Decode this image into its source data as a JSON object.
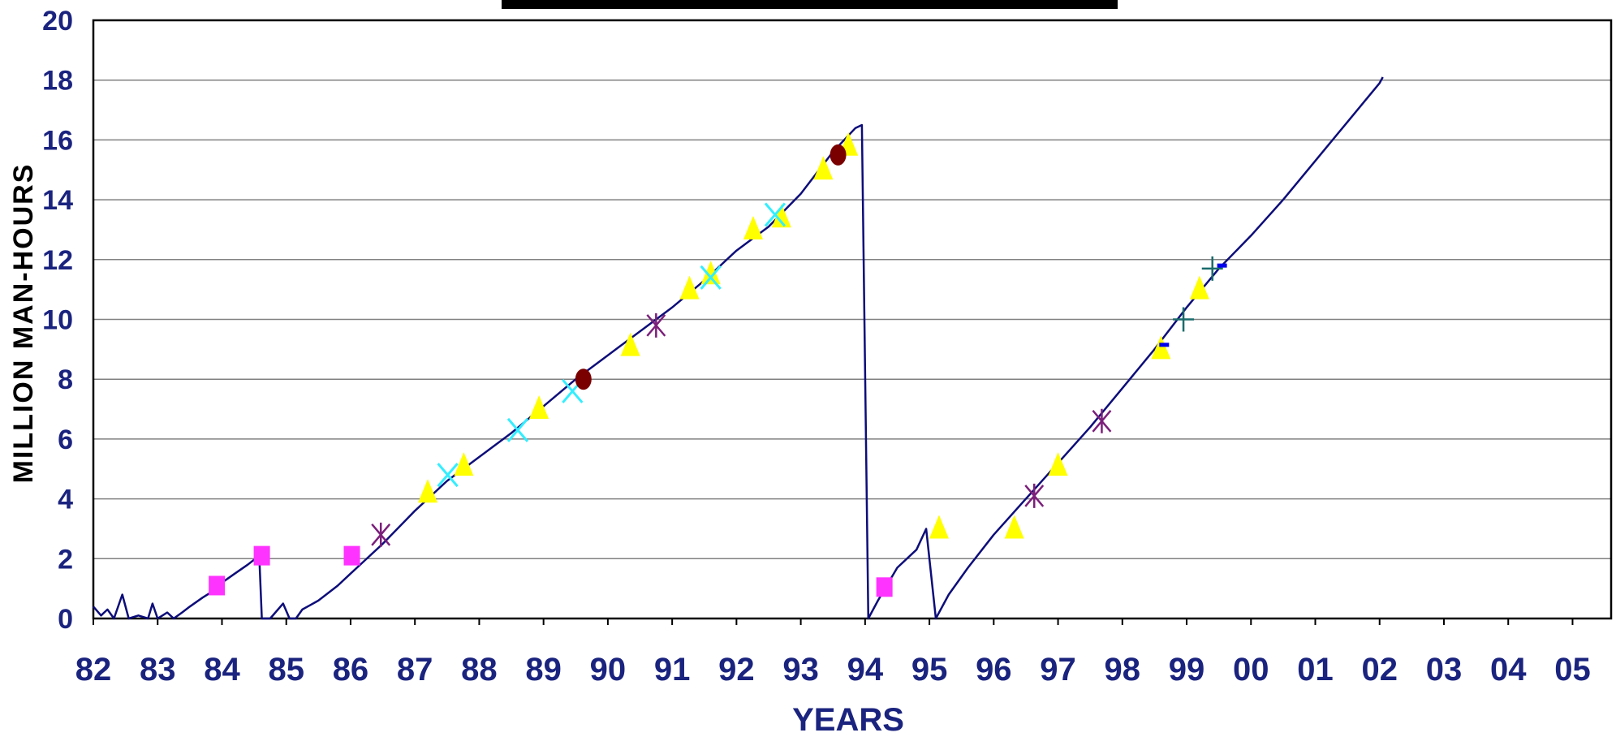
{
  "colors": {
    "line": "#0d0d7a",
    "axis": "#000000",
    "grid": "#808080",
    "tick_text": "#1a237e",
    "square": "#ff33ff",
    "triangle": "#ffff00",
    "x_marker": "#33eeff",
    "asterisk": "#7b1f7b",
    "circle": "#7a0000",
    "plus": "#1a6b6b",
    "dash": "#0000ee",
    "title_bar": "#000000"
  },
  "chart_data": {
    "type": "line",
    "title": "",
    "xlabel": "YEARS",
    "ylabel": "MILLION MAN-HOURS",
    "ylim": [
      0,
      20
    ],
    "xlim": [
      1982,
      2005.6
    ],
    "grid": true,
    "x_ticks": [
      {
        "x": 1982,
        "label": "82"
      },
      {
        "x": 1983,
        "label": "83"
      },
      {
        "x": 1984,
        "label": "84"
      },
      {
        "x": 1985,
        "label": "85"
      },
      {
        "x": 1986,
        "label": "86"
      },
      {
        "x": 1987,
        "label": "87"
      },
      {
        "x": 1988,
        "label": "88"
      },
      {
        "x": 1989,
        "label": "89"
      },
      {
        "x": 1990,
        "label": "90"
      },
      {
        "x": 1991,
        "label": "91"
      },
      {
        "x": 1992,
        "label": "92"
      },
      {
        "x": 1993,
        "label": "93"
      },
      {
        "x": 1994,
        "label": "94"
      },
      {
        "x": 1995,
        "label": "95"
      },
      {
        "x": 1996,
        "label": "96"
      },
      {
        "x": 1997,
        "label": "97"
      },
      {
        "x": 1998,
        "label": "98"
      },
      {
        "x": 1999,
        "label": "99"
      },
      {
        "x": 2000,
        "label": "00"
      },
      {
        "x": 2001,
        "label": "01"
      },
      {
        "x": 2002,
        "label": "02"
      },
      {
        "x": 2003,
        "label": "03"
      },
      {
        "x": 2004,
        "label": "04"
      },
      {
        "x": 2005,
        "label": "05"
      }
    ],
    "y_ticks": [
      0,
      2,
      4,
      6,
      8,
      10,
      12,
      14,
      16,
      18,
      20
    ],
    "series": [
      {
        "values": [
          [
            1982.0,
            0.4
          ],
          [
            1982.12,
            0.1
          ],
          [
            1982.22,
            0.3
          ],
          [
            1982.32,
            0.0
          ],
          [
            1982.45,
            0.8
          ],
          [
            1982.55,
            0.0
          ],
          [
            1982.7,
            0.1
          ],
          [
            1982.85,
            0.0
          ],
          [
            1982.92,
            0.5
          ],
          [
            1983.0,
            0.0
          ],
          [
            1983.15,
            0.2
          ],
          [
            1983.25,
            0.0
          ],
          [
            1983.38,
            0.2
          ],
          [
            1983.5,
            0.4
          ],
          [
            1983.7,
            0.7
          ],
          [
            1983.85,
            0.9
          ],
          [
            1984.0,
            1.2
          ],
          [
            1984.2,
            1.5
          ],
          [
            1984.4,
            1.8
          ],
          [
            1984.58,
            2.1
          ],
          [
            1984.62,
            0.0
          ],
          [
            1984.75,
            0.0
          ],
          [
            1984.95,
            0.5
          ],
          [
            1985.05,
            0.0
          ],
          [
            1985.15,
            0.0
          ],
          [
            1985.25,
            0.3
          ],
          [
            1985.5,
            0.6
          ],
          [
            1985.8,
            1.1
          ],
          [
            1986.0,
            1.5
          ],
          [
            1986.2,
            1.9
          ],
          [
            1986.5,
            2.5
          ],
          [
            1987.0,
            3.6
          ],
          [
            1987.5,
            4.6
          ],
          [
            1988.0,
            5.4
          ],
          [
            1988.5,
            6.2
          ],
          [
            1989.0,
            7.1
          ],
          [
            1989.5,
            8.0
          ],
          [
            1990.0,
            8.8
          ],
          [
            1990.5,
            9.6
          ],
          [
            1991.0,
            10.4
          ],
          [
            1991.5,
            11.3
          ],
          [
            1992.0,
            12.3
          ],
          [
            1992.5,
            13.1
          ],
          [
            1993.0,
            14.2
          ],
          [
            1993.5,
            15.6
          ],
          [
            1993.85,
            16.4
          ],
          [
            1993.95,
            16.5
          ],
          [
            1994.05,
            0.0
          ],
          [
            1994.2,
            0.6
          ],
          [
            1994.5,
            1.7
          ],
          [
            1994.8,
            2.3
          ],
          [
            1994.95,
            3.0
          ],
          [
            1995.1,
            0.0
          ],
          [
            1995.3,
            0.8
          ],
          [
            1995.6,
            1.7
          ],
          [
            1996.0,
            2.8
          ],
          [
            1996.5,
            4.0
          ],
          [
            1997.0,
            5.2
          ],
          [
            1997.5,
            6.4
          ],
          [
            1998.0,
            7.7
          ],
          [
            1998.5,
            9.0
          ],
          [
            1999.0,
            10.4
          ],
          [
            1999.5,
            11.7
          ],
          [
            2000.0,
            12.8
          ],
          [
            2000.5,
            14.0
          ],
          [
            2001.0,
            15.3
          ],
          [
            2001.5,
            16.6
          ],
          [
            2002.0,
            17.9
          ],
          [
            2002.05,
            18.1
          ]
        ]
      }
    ],
    "markers": [
      {
        "shape": "square",
        "x": 1983.92,
        "y": 1.1
      },
      {
        "shape": "square",
        "x": 1984.62,
        "y": 2.1
      },
      {
        "shape": "square",
        "x": 1986.02,
        "y": 2.1
      },
      {
        "shape": "square",
        "x": 1994.3,
        "y": 1.05
      },
      {
        "shape": "asterisk",
        "x": 1986.47,
        "y": 2.8
      },
      {
        "shape": "asterisk",
        "x": 1990.75,
        "y": 9.8
      },
      {
        "shape": "asterisk",
        "x": 1996.63,
        "y": 4.1
      },
      {
        "shape": "asterisk",
        "x": 1997.68,
        "y": 6.6
      },
      {
        "shape": "triangle",
        "x": 1987.2,
        "y": 4.2
      },
      {
        "shape": "triangle",
        "x": 1987.76,
        "y": 5.1
      },
      {
        "shape": "triangle",
        "x": 1988.93,
        "y": 7.0
      },
      {
        "shape": "triangle",
        "x": 1990.35,
        "y": 9.1
      },
      {
        "shape": "triangle",
        "x": 1991.27,
        "y": 11.0
      },
      {
        "shape": "triangle",
        "x": 1991.6,
        "y": 11.5
      },
      {
        "shape": "triangle",
        "x": 1992.26,
        "y": 13.0
      },
      {
        "shape": "triangle",
        "x": 1992.7,
        "y": 13.4
      },
      {
        "shape": "triangle",
        "x": 1993.35,
        "y": 15.0
      },
      {
        "shape": "triangle",
        "x": 1993.74,
        "y": 15.8
      },
      {
        "shape": "triangle",
        "x": 1995.15,
        "y": 3.0
      },
      {
        "shape": "triangle",
        "x": 1996.32,
        "y": 3.0
      },
      {
        "shape": "triangle",
        "x": 1997.0,
        "y": 5.1
      },
      {
        "shape": "triangle",
        "x": 1998.6,
        "y": 9.0
      },
      {
        "shape": "triangle",
        "x": 1999.2,
        "y": 11.0
      },
      {
        "shape": "x",
        "x": 1987.51,
        "y": 4.8
      },
      {
        "shape": "x",
        "x": 1988.6,
        "y": 6.3
      },
      {
        "shape": "x",
        "x": 1989.45,
        "y": 7.6
      },
      {
        "shape": "x",
        "x": 1991.6,
        "y": 11.4
      },
      {
        "shape": "x",
        "x": 1992.6,
        "y": 13.5
      },
      {
        "shape": "circle",
        "x": 1989.62,
        "y": 8.0
      },
      {
        "shape": "circle",
        "x": 1993.58,
        "y": 15.5
      },
      {
        "shape": "plus",
        "x": 1998.95,
        "y": 10.0
      },
      {
        "shape": "plus",
        "x": 1999.4,
        "y": 11.7
      },
      {
        "shape": "dash",
        "x": 1998.65,
        "y": 9.15
      },
      {
        "shape": "dash",
        "x": 1999.55,
        "y": 11.8
      }
    ]
  }
}
